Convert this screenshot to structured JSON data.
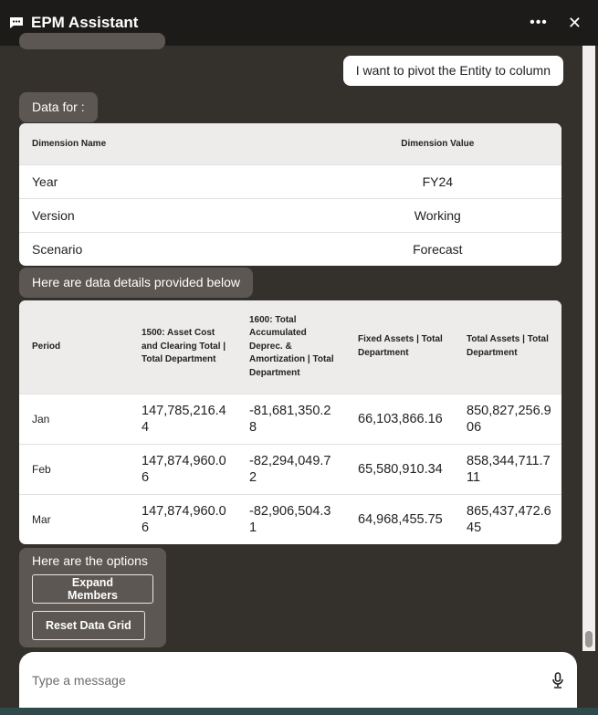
{
  "header": {
    "title": "EPM Assistant",
    "more_icon": "more-horizontal-icon",
    "close_icon": "close-icon",
    "chat_icon": "chat-bubble-icon"
  },
  "messages": {
    "user_message": "I want to pivot the Entity to column",
    "data_for_label": "Data for :",
    "dimension_table": {
      "headers": [
        "Dimension Name",
        "Dimension Value"
      ],
      "rows": [
        [
          "Year",
          "FY24"
        ],
        [
          "Version",
          "Working"
        ],
        [
          "Scenario",
          "Forecast"
        ]
      ]
    },
    "details_label": "Here are data details provided below",
    "data_table": {
      "headers": [
        "Period",
        "1500: Asset Cost and Clearing Total | Total Department",
        "1600: Total Accumulated Deprec. & Amortization | Total Department",
        "Fixed Assets | Total Department",
        "Total Assets | Total Department"
      ],
      "rows": [
        [
          "Jan",
          "147,785,216.44",
          "-81,681,350.28",
          "66,103,866.16",
          "850,827,256.906"
        ],
        [
          "Feb",
          "147,874,960.06",
          "-82,294,049.72",
          "65,580,910.34",
          "858,344,711.711"
        ],
        [
          "Mar",
          "147,874,960.06",
          "-82,906,504.31",
          "64,968,455.75",
          "865,437,472.645"
        ]
      ]
    },
    "options_label": "Here are the options",
    "options": [
      "Expand Members",
      "Reset Data Grid"
    ]
  },
  "composer": {
    "placeholder": "Type a message",
    "mic_icon": "microphone-icon"
  }
}
